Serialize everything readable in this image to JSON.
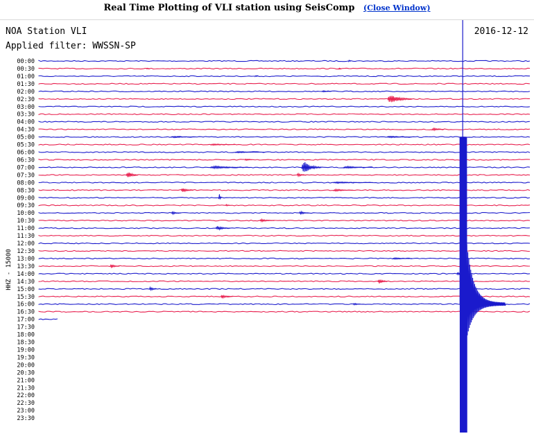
{
  "page": {
    "title": "Real Time Plotting of VLI station using SeisComp",
    "close_link": "(Close Window)"
  },
  "chart_data": {
    "type": "line",
    "subtype": "helicorder",
    "station_label": "NOA Station VLI",
    "date": "2016-12-12",
    "filter_label": "Applied filter: WWSSN-SP",
    "axis_label": "HHZ - 15000",
    "trace_colors": [
      "#1a1acc",
      "#e8204f"
    ],
    "marker_color": "#1a1acc",
    "time_labels": [
      "00:00",
      "00:30",
      "01:00",
      "01:30",
      "02:00",
      "02:30",
      "03:00",
      "03:30",
      "04:00",
      "04:30",
      "05:00",
      "05:30",
      "06:00",
      "06:30",
      "07:00",
      "07:30",
      "08:00",
      "08:30",
      "09:00",
      "09:30",
      "10:00",
      "10:30",
      "11:00",
      "11:30",
      "12:00",
      "12:30",
      "13:00",
      "13:30",
      "14:00",
      "14:30",
      "15:00",
      "15:30",
      "16:00",
      "16:30",
      "17:00",
      "17:30",
      "18:00",
      "18:30",
      "19:00",
      "19:30",
      "20:00",
      "20:30",
      "21:00",
      "21:30",
      "22:00",
      "22:30",
      "23:00",
      "23:30"
    ],
    "recorded_lines": 34,
    "partial_last_line_fraction": 0.04,
    "current_time_fraction": 0.862,
    "main_event": {
      "line": 32,
      "position": 0.862,
      "amplitude_lines_up": 22,
      "amplitude_lines_down": 17
    },
    "events": [
      {
        "line": 0,
        "position": 0.63,
        "amp": 0.4,
        "dur": 0.003
      },
      {
        "line": 1,
        "position": 0.22,
        "amp": 0.3,
        "dur": 0.003
      },
      {
        "line": 1,
        "position": 0.61,
        "amp": 0.3,
        "dur": 0.004
      },
      {
        "line": 2,
        "position": 0.44,
        "amp": 0.3,
        "dur": 0.003
      },
      {
        "line": 4,
        "position": 0.577,
        "amp": 0.3,
        "dur": 0.018
      },
      {
        "line": 5,
        "position": 0.71,
        "amp": 1.6,
        "dur": 0.05
      },
      {
        "line": 9,
        "position": 0.8,
        "amp": 0.5,
        "dur": 0.025
      },
      {
        "line": 10,
        "position": 0.27,
        "amp": 0.3,
        "dur": 0.05
      },
      {
        "line": 10,
        "position": 0.71,
        "amp": 0.3,
        "dur": 0.05
      },
      {
        "line": 11,
        "position": 0.35,
        "amp": 0.3,
        "dur": 0.05
      },
      {
        "line": 12,
        "position": 0.4,
        "amp": 0.3,
        "dur": 0.06
      },
      {
        "line": 13,
        "position": 0.42,
        "amp": 0.4,
        "dur": 0.015
      },
      {
        "line": 14,
        "position": 0.35,
        "amp": 0.5,
        "dur": 0.08
      },
      {
        "line": 14,
        "position": 0.535,
        "amp": 2.2,
        "dur": 0.04
      },
      {
        "line": 14,
        "position": 0.62,
        "amp": 0.4,
        "dur": 0.06
      },
      {
        "line": 15,
        "position": 0.178,
        "amp": 1.3,
        "dur": 0.025
      },
      {
        "line": 15,
        "position": 0.525,
        "amp": 0.6,
        "dur": 0.02
      },
      {
        "line": 16,
        "position": 0.6,
        "amp": 0.3,
        "dur": 0.08
      },
      {
        "line": 17,
        "position": 0.29,
        "amp": 0.9,
        "dur": 0.025
      },
      {
        "line": 17,
        "position": 0.6,
        "amp": 0.4,
        "dur": 0.04
      },
      {
        "line": 18,
        "position": 0.366,
        "amp": 1.8,
        "dur": 0.006
      },
      {
        "line": 19,
        "position": 0.38,
        "amp": 0.4,
        "dur": 0.01
      },
      {
        "line": 20,
        "position": 0.27,
        "amp": 0.5,
        "dur": 0.02
      },
      {
        "line": 20,
        "position": 0.53,
        "amp": 0.6,
        "dur": 0.02
      },
      {
        "line": 21,
        "position": 0.45,
        "amp": 0.5,
        "dur": 0.03
      },
      {
        "line": 22,
        "position": 0.36,
        "amp": 0.8,
        "dur": 0.03
      },
      {
        "line": 26,
        "position": 0.72,
        "amp": 0.3,
        "dur": 0.04
      },
      {
        "line": 27,
        "position": 0.145,
        "amp": 0.7,
        "dur": 0.02
      },
      {
        "line": 28,
        "position": 0.85,
        "amp": 0.6,
        "dur": 0.015
      },
      {
        "line": 29,
        "position": 0.69,
        "amp": 0.9,
        "dur": 0.02
      },
      {
        "line": 30,
        "position": 0.225,
        "amp": 0.7,
        "dur": 0.015
      },
      {
        "line": 31,
        "position": 0.37,
        "amp": 0.7,
        "dur": 0.025
      },
      {
        "line": 32,
        "position": 0.64,
        "amp": 0.4,
        "dur": 0.015
      }
    ]
  }
}
